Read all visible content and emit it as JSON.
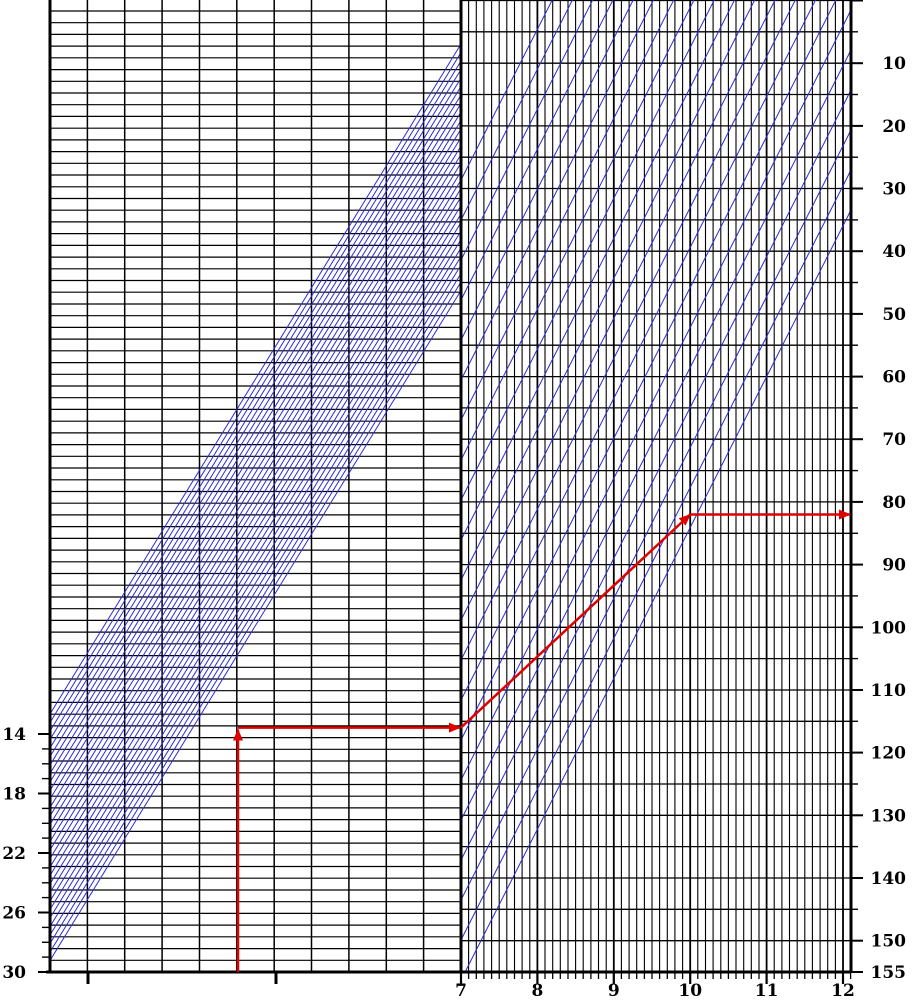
{
  "chart_data": {
    "type": "nomogram",
    "colors": {
      "grid": "#000000",
      "guide_lines": "#2b2bd6",
      "path": "#e00000",
      "background": "#ffffff"
    },
    "left_panel": {
      "y_axis": {
        "side": "left",
        "range": [
          14,
          30
        ],
        "major_ticks": [
          "14",
          "18",
          "22",
          "26",
          "30"
        ],
        "minor_tick_step": 1
      },
      "vertical_grid_count": 11,
      "diagonal_band": {
        "line_count": 30,
        "slope": "rising to the right",
        "extent": "from the left edge near the 14–30 scale up to the central divider"
      }
    },
    "right_panel": {
      "x_axis": {
        "side": "bottom",
        "range": [
          7,
          12
        ],
        "labels": [
          "7",
          "8",
          "9",
          "10",
          "11",
          "12"
        ],
        "minor_tick_step": 0.1
      },
      "y_axis": {
        "side": "right",
        "range": [
          0,
          155
        ],
        "labels": [
          "10",
          "20",
          "30",
          "40",
          "50",
          "60",
          "70",
          "80",
          "90",
          "100",
          "110",
          "120",
          "130",
          "140",
          "150",
          "155"
        ],
        "minor_tick_step": 5
      },
      "diagonal_lines": {
        "count": 21,
        "slope": "rising to the right"
      }
    },
    "example_path": {
      "color": "red",
      "arrows": true,
      "segments": [
        "vertical upward from the bottom of the left panel",
        "horizontal right to the central divider",
        "along a diagonal to x = 10",
        "horizontal right to the right scale at about 82"
      ],
      "right_panel_points": [
        {
          "x": 7.0,
          "y": 116
        },
        {
          "x": 10.0,
          "y": 82
        },
        {
          "x": 12.1,
          "y": 82
        }
      ]
    }
  }
}
